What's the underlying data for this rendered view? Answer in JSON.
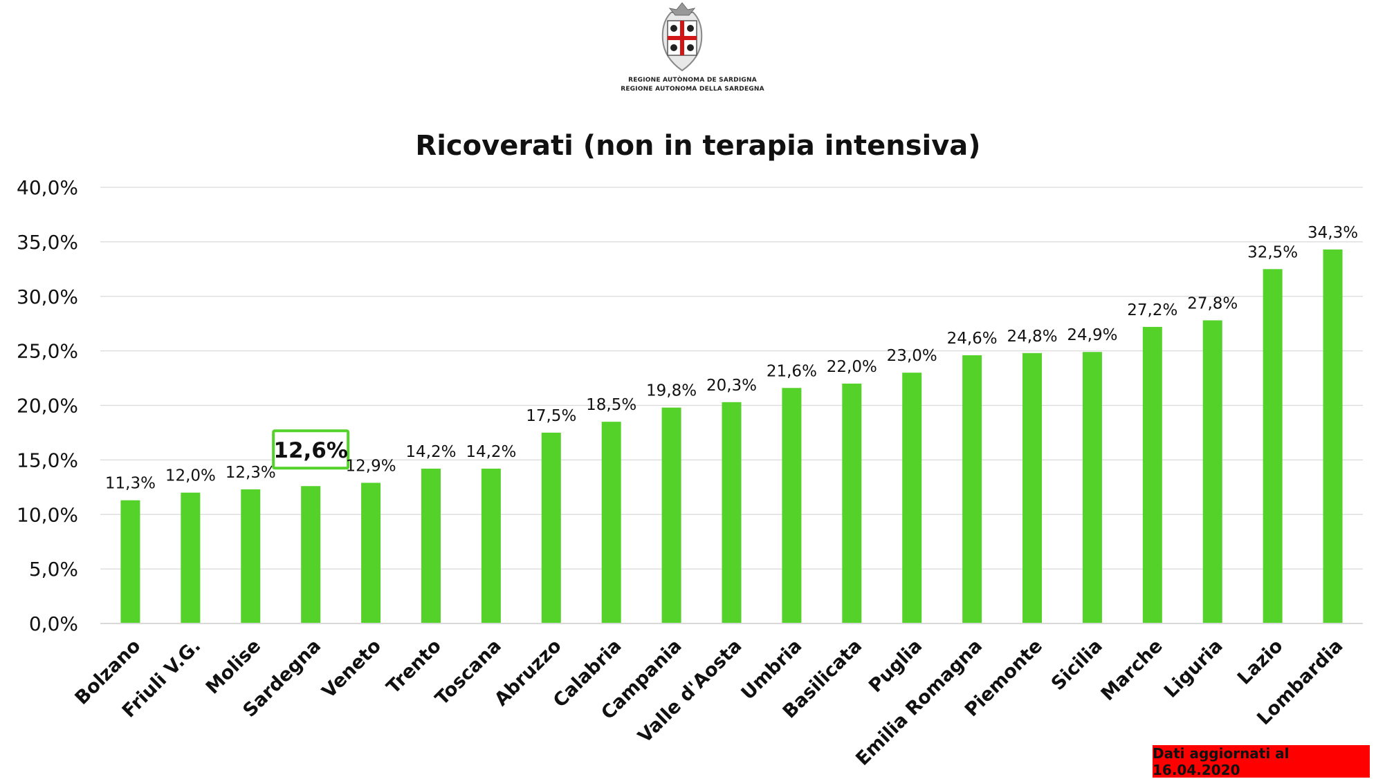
{
  "header": {
    "logo_line_1": "REGIONE AUTÒNOMA DE SARDIGNA",
    "logo_line_2": "REGIONE AUTONOMA DELLA SARDEGNA"
  },
  "footer": {
    "update_label": "Dati aggiornati al 16.04.2020"
  },
  "colors": {
    "bar": "#55d22a",
    "highlight_border": "#55d22a",
    "badge": "#ff0000",
    "grid": "#d9d9d9"
  },
  "chart_data": {
    "type": "bar",
    "title": "Ricoverati (non in terapia intensiva)",
    "xlabel": "",
    "ylabel": "",
    "ylim": [
      0,
      40
    ],
    "yticks": [
      0,
      5,
      10,
      15,
      20,
      25,
      30,
      35,
      40
    ],
    "ytick_labels": [
      "0,0%",
      "5,0%",
      "10,0%",
      "15,0%",
      "20,0%",
      "25,0%",
      "30,0%",
      "35,0%",
      "40,0%"
    ],
    "grid": true,
    "legend": "none",
    "categories": [
      "Bolzano",
      "Friuli V.G.",
      "Molise",
      "Sardegna",
      "Veneto",
      "Trento",
      "Toscana",
      "Abruzzo",
      "Calabria",
      "Campania",
      "Valle d'Aosta",
      "Umbria",
      "Basilicata",
      "Puglia",
      "Emilia Romagna",
      "Piemonte",
      "Sicilia",
      "Marche",
      "Liguria",
      "Lazio",
      "Lombardia"
    ],
    "values": [
      11.3,
      12.0,
      12.3,
      12.6,
      12.9,
      14.2,
      14.2,
      17.5,
      18.5,
      19.8,
      20.3,
      21.6,
      22.0,
      23.0,
      24.6,
      24.8,
      24.9,
      27.2,
      27.8,
      32.5,
      34.3
    ],
    "value_labels": [
      "11,3%",
      "12,0%",
      "12,3%",
      "12,6%",
      "12,9%",
      "14,2%",
      "14,2%",
      "17,5%",
      "18,5%",
      "19,8%",
      "20,3%",
      "21,6%",
      "22,0%",
      "23,0%",
      "24,6%",
      "24,8%",
      "24,9%",
      "27,2%",
      "27,8%",
      "32,5%",
      "34,3%"
    ],
    "highlight_category": "Sardegna"
  }
}
